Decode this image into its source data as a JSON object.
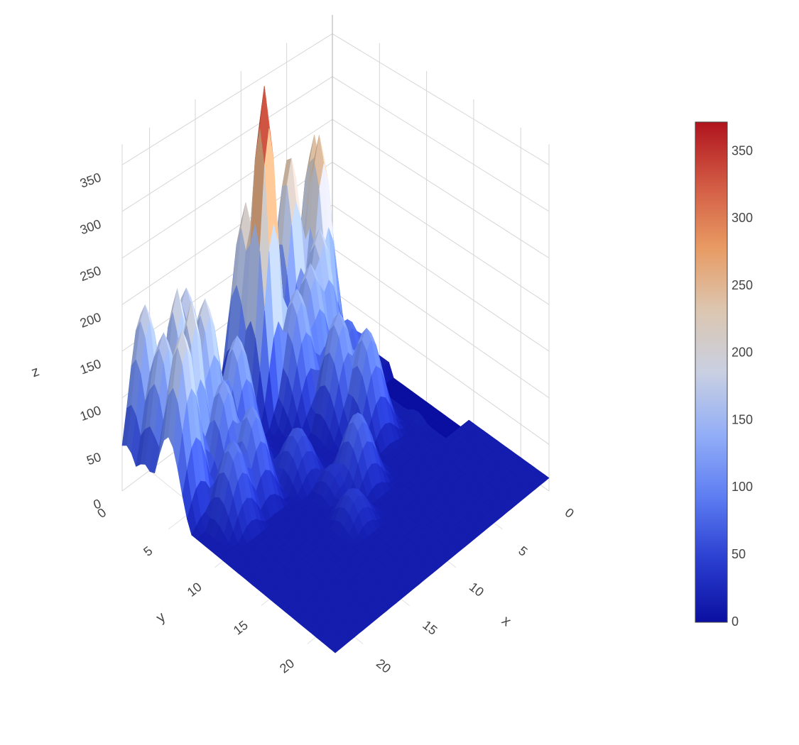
{
  "chart_data": {
    "type": "surface",
    "title": "",
    "colorscale": "coolwarm",
    "x": {
      "label": "x",
      "range": [
        0,
        23
      ],
      "ticks": [
        0,
        5,
        10,
        15,
        20
      ],
      "tick_labels": [
        "0",
        "5",
        "10",
        "15",
        "20"
      ]
    },
    "y": {
      "label": "y",
      "range": [
        0,
        23
      ],
      "ticks": [
        0,
        5,
        10,
        15,
        20
      ],
      "tick_labels": [
        "0",
        "5",
        "10",
        "15",
        "20"
      ]
    },
    "z": {
      "label": "z",
      "range": [
        0,
        372
      ],
      "ticks": [
        0,
        50,
        100,
        150,
        200,
        250,
        300,
        350
      ],
      "tick_labels": [
        "0",
        "50",
        "100",
        "150",
        "200",
        "250",
        "300",
        "350"
      ]
    },
    "colorbar": {
      "min": 0,
      "max": 372,
      "ticks": [
        0,
        50,
        100,
        150,
        200,
        250,
        300,
        350
      ],
      "tick_labels": [
        "0",
        "50",
        "100",
        "150",
        "200",
        "250",
        "300",
        "350"
      ],
      "colors": [
        "#0a0fa0",
        "#2a3ed0",
        "#5d7df2",
        "#93aef7",
        "#c9d0e2",
        "#dcc6b0",
        "#e89a62",
        "#d25a44",
        "#b0141e"
      ]
    },
    "grid": true,
    "peaks": [
      {
        "x": 2.5,
        "y": 10.0,
        "z": 372
      },
      {
        "x": 1.0,
        "y": 10.5,
        "z": 235
      },
      {
        "x": 4.5,
        "y": 8.5,
        "z": 150
      },
      {
        "x": 2.0,
        "y": 3.5,
        "z": 270
      },
      {
        "x": 1.0,
        "y": 3.0,
        "z": 260
      },
      {
        "x": 0.8,
        "y": 5.5,
        "z": 255
      },
      {
        "x": 3.5,
        "y": 5.0,
        "z": 185
      },
      {
        "x": 4.0,
        "y": 6.5,
        "z": 160
      },
      {
        "x": 5.5,
        "y": 4.0,
        "z": 90
      },
      {
        "x": 6.0,
        "y": 3.0,
        "z": 70
      },
      {
        "x": 7.5,
        "y": 7.0,
        "z": 135
      },
      {
        "x": 9.5,
        "y": 6.0,
        "z": 125
      },
      {
        "x": 11.5,
        "y": 0.5,
        "z": 75
      },
      {
        "x": 12.5,
        "y": 10.0,
        "z": 85
      },
      {
        "x": 15.0,
        "y": 13.0,
        "z": 45
      },
      {
        "x": 9.0,
        "y": 13.0,
        "z": 65
      },
      {
        "x": 7.0,
        "y": 15.0,
        "z": 40
      },
      {
        "x": 1.0,
        "y": 17.0,
        "z": 185
      },
      {
        "x": 2.0,
        "y": 19.0,
        "z": 205
      },
      {
        "x": 0.5,
        "y": 21.0,
        "z": 190
      },
      {
        "x": 3.5,
        "y": 17.5,
        "z": 195
      },
      {
        "x": 4.0,
        "y": 19.5,
        "z": 210
      },
      {
        "x": 5.0,
        "y": 21.5,
        "z": 200
      },
      {
        "x": 2.5,
        "y": 21.0,
        "z": 175
      },
      {
        "x": 4.5,
        "y": 15.0,
        "z": 145
      },
      {
        "x": 6.0,
        "y": 18.0,
        "z": 130
      },
      {
        "x": 8.0,
        "y": 17.0,
        "z": 110
      },
      {
        "x": 8.5,
        "y": 19.5,
        "z": 95
      },
      {
        "x": 12.0,
        "y": 12.0,
        "z": 40
      }
    ],
    "zero_region": {
      "x_max": 14,
      "y_max": 2
    }
  }
}
